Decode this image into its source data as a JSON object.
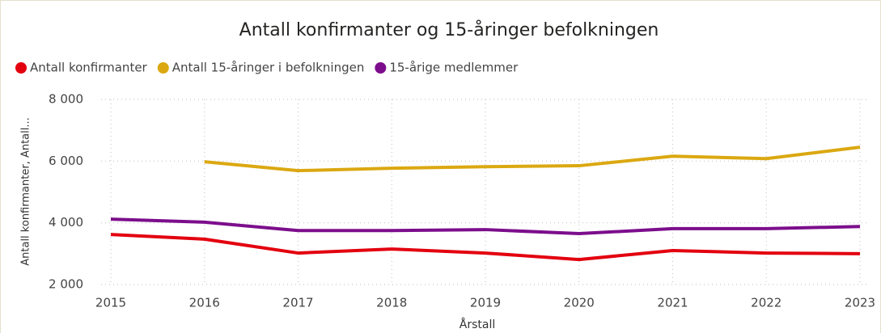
{
  "chart_data": {
    "type": "line",
    "title": "Antall konfirmanter og 15-åringer befolkningen",
    "x": [
      2015,
      2016,
      2017,
      2018,
      2019,
      2020,
      2021,
      2022,
      2023
    ],
    "series": [
      {
        "name": "Antall konfirmanter",
        "color": "#e3000f",
        "values": [
          3620,
          3470,
          3020,
          3150,
          3020,
          2810,
          3100,
          3020,
          3000
        ]
      },
      {
        "name": "Antall 15-åringer i befolkningen",
        "color": "#dba811",
        "values": [
          null,
          5980,
          5690,
          5770,
          5820,
          5850,
          6160,
          6080,
          6450
        ]
      },
      {
        "name": "15-årige medlemmer",
        "color": "#7c0e8c",
        "values": [
          4120,
          4020,
          3750,
          3750,
          3780,
          3650,
          3810,
          3810,
          3880
        ]
      }
    ],
    "xlabel": "Årstall",
    "ylabel": "Antall konfirmanter, Antall...",
    "xlim": [
      2015,
      2023
    ],
    "xticks": [
      2015,
      2016,
      2017,
      2018,
      2019,
      2020,
      2021,
      2022,
      2023
    ],
    "ylim": [
      2000,
      8000
    ],
    "yticks": [
      {
        "value": 2000,
        "label": "2 000"
      },
      {
        "value": 4000,
        "label": "4 000"
      },
      {
        "value": 6000,
        "label": "6 000"
      },
      {
        "value": 8000,
        "label": "8 000"
      }
    ],
    "grid": true,
    "legend": "top-left"
  }
}
